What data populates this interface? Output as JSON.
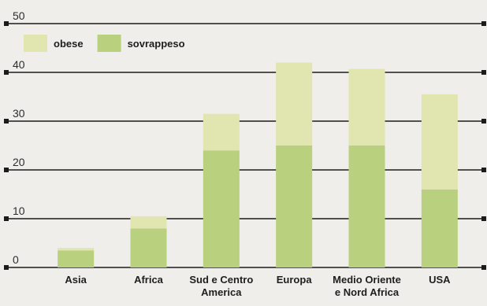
{
  "chart_data": {
    "type": "bar",
    "stacked": true,
    "title": "",
    "xlabel": "",
    "ylabel": "",
    "categories": [
      "Asia",
      "Africa",
      "Sud e Centro America",
      "Europa",
      "Medio Oriente e Nord Africa",
      "USA"
    ],
    "category_lines": [
      [
        "Asia"
      ],
      [
        "Africa"
      ],
      [
        "Sud e Centro",
        "America"
      ],
      [
        "Europa"
      ],
      [
        "Medio Oriente",
        "e Nord Africa"
      ],
      [
        "USA"
      ]
    ],
    "ylim": [
      0,
      50
    ],
    "yticks": [
      0,
      10,
      20,
      30,
      40,
      50
    ],
    "grid": true,
    "legend": "top-left",
    "series": [
      {
        "name": "sovrappeso",
        "color": "#b9d07e",
        "values": [
          3.5,
          8,
          24,
          25,
          25,
          16
        ]
      },
      {
        "name": "obese",
        "color": "#e1e5b0",
        "values": [
          0.5,
          2.5,
          7.5,
          17,
          15.7,
          19.5
        ]
      }
    ]
  }
}
